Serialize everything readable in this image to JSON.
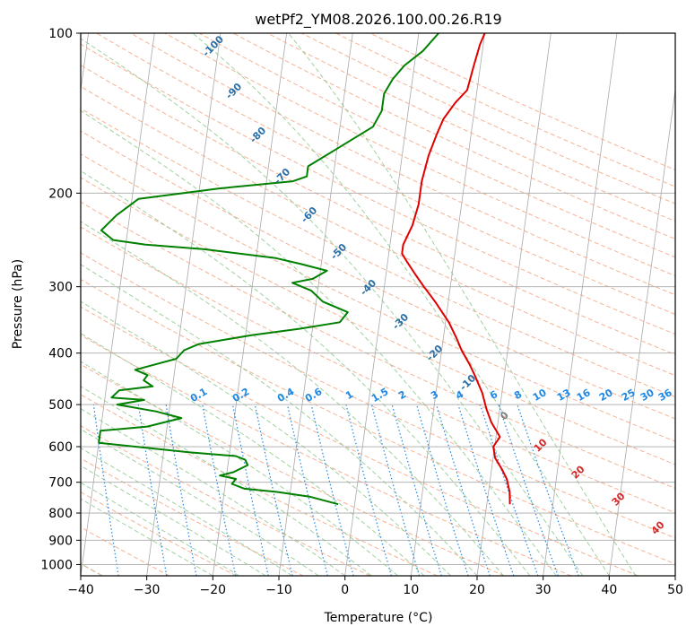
{
  "chart_data": {
    "type": "skew-t",
    "title": "wetPf2_YM08.2026.100.00.26.R19",
    "xlabel": "Temperature (°C)",
    "ylabel": "Pressure (hPa)",
    "xlim": [
      -40,
      50
    ],
    "ylim_hpa": [
      1050,
      100
    ],
    "y_scale": "log",
    "x_ticks": [
      -40,
      -30,
      -20,
      -10,
      0,
      10,
      20,
      30,
      40,
      50
    ],
    "y_ticks": [
      100,
      200,
      300,
      400,
      500,
      600,
      700,
      800,
      900,
      1000
    ],
    "grid": true,
    "colors": {
      "temperature": "#e00000",
      "dewpoint": "#008000",
      "isotherm": "#a9a9a9",
      "dry_adiabat": "#f4a582",
      "moist_adiabat": "#8fc98f",
      "mixing_ratio": "#1e88e5",
      "moist_adiabat_label": "#2a6fa8",
      "dry_adiabat_label": "#d62728",
      "zero_label": "#808080",
      "outer_adiabat": "#d8c3a5"
    },
    "series": [
      {
        "name": "",
        "role": "temperature",
        "points": [
          [
            23.5,
            770
          ],
          [
            23.2,
            730
          ],
          [
            22.5,
            690
          ],
          [
            21.5,
            660
          ],
          [
            20.3,
            630
          ],
          [
            19.8,
            600
          ],
          [
            20.6,
            575
          ],
          [
            19.0,
            540
          ],
          [
            18.0,
            510
          ],
          [
            17.0,
            475
          ],
          [
            15.5,
            440
          ],
          [
            14.5,
            420
          ],
          [
            13.0,
            395
          ],
          [
            12.0,
            375
          ],
          [
            10.5,
            350
          ],
          [
            8.0,
            320
          ],
          [
            6.0,
            300
          ],
          [
            4.5,
            285
          ],
          [
            3.0,
            270
          ],
          [
            2.0,
            260
          ],
          [
            2.0,
            250
          ],
          [
            3.0,
            230
          ],
          [
            3.5,
            210
          ],
          [
            3.5,
            190
          ],
          [
            4.0,
            170
          ],
          [
            4.8,
            155
          ],
          [
            5.5,
            145
          ],
          [
            7.0,
            135
          ],
          [
            8.5,
            128
          ],
          [
            9.0,
            115
          ],
          [
            9.5,
            105
          ],
          [
            10.0,
            100
          ]
        ]
      },
      {
        "name": "",
        "role": "dewpoint",
        "points": [
          [
            -2.5,
            770
          ],
          [
            -7,
            745
          ],
          [
            -12,
            730
          ],
          [
            -17,
            720
          ],
          [
            -19,
            705
          ],
          [
            -18.5,
            690
          ],
          [
            -21,
            680
          ],
          [
            -19,
            670
          ],
          [
            -17,
            650
          ],
          [
            -17.5,
            635
          ],
          [
            -19,
            625
          ],
          [
            -26,
            615
          ],
          [
            -40,
            590
          ],
          [
            -40,
            560
          ],
          [
            -33,
            550
          ],
          [
            -28,
            530
          ],
          [
            -32,
            515
          ],
          [
            -38,
            500
          ],
          [
            -34,
            490
          ],
          [
            -39,
            485
          ],
          [
            -38,
            470
          ],
          [
            -33,
            462
          ],
          [
            -34.5,
            450
          ],
          [
            -34,
            440
          ],
          [
            -36,
            430
          ],
          [
            -33,
            420
          ],
          [
            -30,
            410
          ],
          [
            -29,
            395
          ],
          [
            -27,
            385
          ],
          [
            -26,
            383
          ],
          [
            -19,
            370
          ],
          [
            -12,
            360
          ],
          [
            -6,
            350
          ],
          [
            -5,
            335
          ],
          [
            -9,
            320
          ],
          [
            -11,
            305
          ],
          [
            -14,
            295
          ],
          [
            -11,
            290
          ],
          [
            -9,
            280
          ],
          [
            -13,
            272
          ],
          [
            -17,
            265
          ],
          [
            -28,
            255
          ],
          [
            -37,
            250
          ],
          [
            -42,
            245
          ],
          [
            -44,
            235
          ],
          [
            -42,
            220
          ],
          [
            -39,
            205
          ],
          [
            -27,
            196
          ],
          [
            -16,
            190
          ],
          [
            -14,
            186
          ],
          [
            -14,
            178
          ],
          [
            -10,
            165
          ],
          [
            -5,
            150
          ],
          [
            -4,
            140
          ],
          [
            -4,
            130
          ],
          [
            -3,
            122
          ],
          [
            -1.5,
            115
          ],
          [
            1,
            108
          ],
          [
            3,
            100
          ]
        ]
      }
    ],
    "moist_adiabat_labels": [
      "-100",
      "-90",
      "-80",
      "-70",
      "-60",
      "-50",
      "-40",
      "-30",
      "-20",
      "-10",
      "0"
    ],
    "mixing_ratio_labels": [
      "0.1",
      "0.2",
      "0.4",
      "0.6",
      "1",
      "1.5",
      "2",
      "3",
      "4",
      "6",
      "8",
      "10",
      "13",
      "16",
      "20",
      "25",
      "30",
      "36"
    ],
    "mixing_ratio_values": [
      0.1,
      0.2,
      0.4,
      0.6,
      1,
      1.5,
      2,
      3,
      4,
      6,
      8,
      10,
      13,
      16,
      20,
      25,
      30,
      36
    ],
    "dry_adiabat_labels": [
      "10",
      "20",
      "30",
      "40"
    ]
  }
}
